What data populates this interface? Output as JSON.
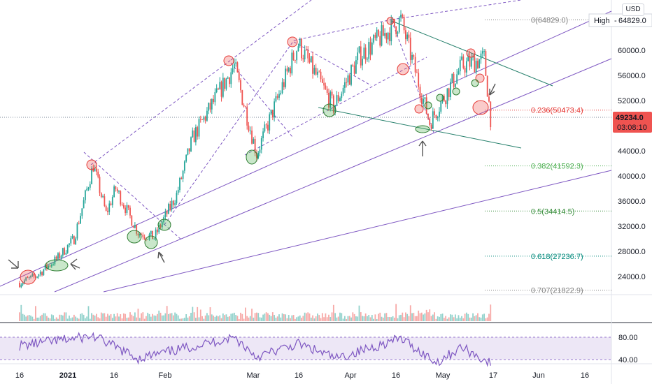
{
  "currency_label": "USD",
  "high_label": "High",
  "high_value": "64829.0",
  "price_tag": {
    "value": "49234.0",
    "countdown": "03:08:10"
  },
  "colors": {
    "up": "#26a69a",
    "down": "#ef5350",
    "rsi": "#7e57c2",
    "trendline": "#7e57c2",
    "channel": "#7e57c2",
    "wedge": "#26806c",
    "marker_red": "#e53935",
    "marker_green": "#43a047"
  },
  "fib_levels": [
    {
      "label": "0(64829.0)",
      "ratio": 0,
      "price": 64829.0,
      "color": "#808080"
    },
    {
      "label": "0.236(50473.4)",
      "ratio": 0.236,
      "price": 50473.4,
      "color": "#e53935"
    },
    {
      "label": "0.382(41592.3)",
      "ratio": 0.382,
      "price": 41592.3,
      "color": "#4caf50"
    },
    {
      "label": "0.5(34414.5)",
      "ratio": 0.5,
      "price": 34414.5,
      "color": "#388e3c"
    },
    {
      "label": "0.618(27236.7)",
      "ratio": 0.618,
      "price": 27236.7,
      "color": "#00897b"
    },
    {
      "label": "0.707(21822.9)",
      "ratio": 0.707,
      "price": 21822.9,
      "color": "#808080"
    }
  ],
  "rsi_ticks": [
    "80.00",
    "40.00"
  ],
  "chart_data": {
    "type": "candlestick",
    "price_axis_ticks": [
      "60000.0",
      "56000.0",
      "52000.0",
      "48000.0",
      "44000.0",
      "40000.0",
      "36000.0",
      "32000.0",
      "28000.0",
      "24000.0"
    ],
    "price_axis_values": [
      60000,
      56000,
      52000,
      48000,
      44000,
      40000,
      36000,
      32000,
      28000,
      24000
    ],
    "ylim": [
      21400,
      66000
    ],
    "x_axis_ticks": [
      "16",
      "2021",
      "16",
      "Feb",
      "Mar",
      "16",
      "Apr",
      "16",
      "May",
      "17",
      "Jun",
      "16"
    ],
    "price_keypoints": [
      {
        "date": "2020-12-16",
        "price": 23000
      },
      {
        "date": "2020-12-21",
        "price": 24000
      },
      {
        "date": "2020-12-28",
        "price": 27000
      },
      {
        "date": "2021-01-02",
        "price": 30000
      },
      {
        "date": "2021-01-08",
        "price": 41700
      },
      {
        "date": "2021-01-12",
        "price": 34000
      },
      {
        "date": "2021-01-15",
        "price": 38000
      },
      {
        "date": "2021-01-22",
        "price": 31000
      },
      {
        "date": "2021-01-27",
        "price": 30200
      },
      {
        "date": "2021-02-03",
        "price": 37000
      },
      {
        "date": "2021-02-08",
        "price": 46000
      },
      {
        "date": "2021-02-21",
        "price": 57500
      },
      {
        "date": "2021-02-28",
        "price": 43500
      },
      {
        "date": "2021-03-13",
        "price": 61000
      },
      {
        "date": "2021-03-24",
        "price": 51000
      },
      {
        "date": "2021-04-01",
        "price": 59000
      },
      {
        "date": "2021-04-14",
        "price": 64829
      },
      {
        "date": "2021-04-23",
        "price": 48500
      },
      {
        "date": "2021-05-03",
        "price": 57500
      },
      {
        "date": "2021-05-10",
        "price": 58700
      },
      {
        "date": "2021-05-12",
        "price": 49234
      }
    ],
    "rsi_keypoints": [
      {
        "date": "2020-12-16",
        "value": 65
      },
      {
        "date": "2021-01-08",
        "value": 82
      },
      {
        "date": "2021-01-22",
        "value": 42
      },
      {
        "date": "2021-02-21",
        "value": 80
      },
      {
        "date": "2021-02-28",
        "value": 45
      },
      {
        "date": "2021-03-13",
        "value": 68
      },
      {
        "date": "2021-03-25",
        "value": 42
      },
      {
        "date": "2021-04-14",
        "value": 78
      },
      {
        "date": "2021-04-25",
        "value": 35
      },
      {
        "date": "2021-05-03",
        "value": 62
      },
      {
        "date": "2021-05-12",
        "value": 33
      }
    ],
    "current_price": 49234.0,
    "high": 64829.0
  }
}
